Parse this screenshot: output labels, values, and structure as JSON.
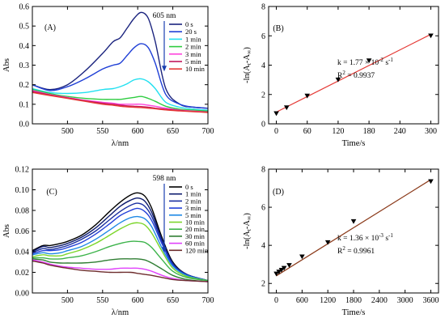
{
  "chart_data": [
    {
      "panel": "(A)",
      "type": "line",
      "xlabel": "λ/nm",
      "ylabel": "Abs",
      "xlim": [
        450,
        700
      ],
      "ylim": [
        0.0,
        0.6
      ],
      "xticks": [
        "500",
        "550",
        "600",
        "650",
        "700"
      ],
      "yticks": [
        "0.0",
        "0.1",
        "0.2",
        "0.3",
        "0.4",
        "0.5",
        "0.6"
      ],
      "annotation": "605 nm",
      "legend_position": "top-right",
      "x": [
        450,
        475,
        500,
        525,
        550,
        565,
        575,
        585,
        595,
        605,
        615,
        625,
        640,
        660,
        680,
        700
      ],
      "series": [
        {
          "name": "0 s",
          "color": "#1a237e",
          "values": [
            0.2,
            0.175,
            0.2,
            0.27,
            0.36,
            0.42,
            0.44,
            0.49,
            0.54,
            0.57,
            0.54,
            0.42,
            0.18,
            0.1,
            0.085,
            0.08
          ]
        },
        {
          "name": "20 s",
          "color": "#1f3fd6",
          "values": [
            0.2,
            0.17,
            0.19,
            0.23,
            0.28,
            0.3,
            0.31,
            0.35,
            0.39,
            0.41,
            0.39,
            0.31,
            0.15,
            0.1,
            0.085,
            0.08
          ]
        },
        {
          "name": "1 min",
          "color": "#22e0f0",
          "values": [
            0.18,
            0.16,
            0.155,
            0.16,
            0.175,
            0.18,
            0.19,
            0.205,
            0.225,
            0.23,
            0.215,
            0.18,
            0.11,
            0.085,
            0.075,
            0.07
          ]
        },
        {
          "name": "2 min",
          "color": "#2ecc40",
          "values": [
            0.175,
            0.155,
            0.14,
            0.13,
            0.125,
            0.125,
            0.125,
            0.13,
            0.135,
            0.14,
            0.13,
            0.115,
            0.09,
            0.075,
            0.07,
            0.065
          ]
        },
        {
          "name": "3 min",
          "color": "#ff44dd",
          "values": [
            0.17,
            0.15,
            0.135,
            0.12,
            0.11,
            0.105,
            0.1,
            0.1,
            0.1,
            0.1,
            0.095,
            0.09,
            0.08,
            0.07,
            0.065,
            0.06
          ]
        },
        {
          "name": "5 min",
          "color": "#c2185b",
          "values": [
            0.165,
            0.148,
            0.132,
            0.118,
            0.105,
            0.1,
            0.095,
            0.092,
            0.09,
            0.088,
            0.085,
            0.08,
            0.074,
            0.068,
            0.063,
            0.06
          ]
        },
        {
          "name": "10 min",
          "color": "#e53935",
          "values": [
            0.16,
            0.145,
            0.13,
            0.115,
            0.1,
            0.095,
            0.09,
            0.087,
            0.085,
            0.083,
            0.08,
            0.077,
            0.071,
            0.066,
            0.062,
            0.058
          ]
        }
      ]
    },
    {
      "panel": "(B)",
      "type": "scatter",
      "xlabel": "Time/s",
      "ylabel": "-ln(At-A∞)",
      "xlim": [
        -15,
        315
      ],
      "ylim": [
        0,
        8
      ],
      "xticks": [
        "0",
        "60",
        "120",
        "180",
        "240",
        "300"
      ],
      "yticks": [
        "0",
        "2",
        "4",
        "6",
        "8"
      ],
      "x": [
        0,
        20,
        60,
        120,
        180,
        300
      ],
      "y": [
        0.7,
        1.1,
        1.9,
        3.0,
        4.3,
        6.0
      ],
      "fit_line": {
        "x": [
          0,
          300
        ],
        "y": [
          0.8,
          6.1
        ],
        "color": "#e53935"
      },
      "fit_text": [
        "k = 1.77 × 10",
        "-2",
        " s",
        "-1",
        "R",
        "2",
        " = 0.9937"
      ]
    },
    {
      "panel": "(C)",
      "type": "line",
      "xlabel": "λ/nm",
      "ylabel": "Abs",
      "xlim": [
        450,
        700
      ],
      "ylim": [
        0.0,
        0.12
      ],
      "xticks": [
        "500",
        "550",
        "600",
        "650",
        "700"
      ],
      "yticks": [
        "0.00",
        "0.02",
        "0.04",
        "0.06",
        "0.08",
        "0.10",
        "0.12"
      ],
      "annotation": "598 nm",
      "legend_position": "top-right",
      "x": [
        450,
        465,
        475,
        490,
        500,
        520,
        540,
        560,
        575,
        590,
        600,
        610,
        620,
        635,
        650,
        670,
        700
      ],
      "series": [
        {
          "name": "0 s",
          "color": "#000000",
          "values": [
            0.041,
            0.046,
            0.046,
            0.048,
            0.05,
            0.056,
            0.066,
            0.079,
            0.088,
            0.095,
            0.097,
            0.094,
            0.082,
            0.053,
            0.03,
            0.018,
            0.012
          ]
        },
        {
          "name": "1 min",
          "color": "#0d1b6e",
          "values": [
            0.04,
            0.045,
            0.044,
            0.046,
            0.048,
            0.054,
            0.063,
            0.075,
            0.084,
            0.09,
            0.092,
            0.089,
            0.078,
            0.051,
            0.029,
            0.018,
            0.012
          ]
        },
        {
          "name": "2 min",
          "color": "#1a2fa0",
          "values": [
            0.039,
            0.043,
            0.042,
            0.044,
            0.046,
            0.052,
            0.06,
            0.071,
            0.079,
            0.085,
            0.087,
            0.084,
            0.074,
            0.049,
            0.028,
            0.018,
            0.012
          ]
        },
        {
          "name": "3 min",
          "color": "#2340d8",
          "values": [
            0.038,
            0.041,
            0.041,
            0.042,
            0.044,
            0.049,
            0.057,
            0.067,
            0.075,
            0.08,
            0.082,
            0.079,
            0.07,
            0.047,
            0.027,
            0.017,
            0.012
          ]
        },
        {
          "name": "5 min",
          "color": "#1e88e5",
          "values": [
            0.037,
            0.039,
            0.038,
            0.039,
            0.041,
            0.045,
            0.052,
            0.061,
            0.068,
            0.073,
            0.074,
            0.072,
            0.064,
            0.043,
            0.026,
            0.017,
            0.012
          ]
        },
        {
          "name": "10 min",
          "color": "#7cd62a",
          "values": [
            0.035,
            0.037,
            0.036,
            0.036,
            0.038,
            0.042,
            0.048,
            0.056,
            0.062,
            0.067,
            0.068,
            0.066,
            0.058,
            0.04,
            0.024,
            0.016,
            0.012
          ]
        },
        {
          "name": "20 min",
          "color": "#3cb34a",
          "values": [
            0.034,
            0.034,
            0.033,
            0.033,
            0.034,
            0.036,
            0.04,
            0.045,
            0.048,
            0.05,
            0.05,
            0.049,
            0.044,
            0.032,
            0.021,
            0.015,
            0.012
          ]
        },
        {
          "name": "30 min",
          "color": "#2e7d32",
          "values": [
            0.033,
            0.032,
            0.03,
            0.029,
            0.029,
            0.029,
            0.03,
            0.032,
            0.033,
            0.033,
            0.033,
            0.032,
            0.029,
            0.023,
            0.017,
            0.013,
            0.011
          ]
        },
        {
          "name": "60 min",
          "color": "#e040fb",
          "values": [
            0.032,
            0.03,
            0.028,
            0.026,
            0.025,
            0.024,
            0.023,
            0.023,
            0.024,
            0.024,
            0.024,
            0.023,
            0.021,
            0.017,
            0.014,
            0.012,
            0.011
          ]
        },
        {
          "name": "120 min",
          "color": "#6d2c2c",
          "values": [
            0.031,
            0.029,
            0.027,
            0.025,
            0.024,
            0.022,
            0.021,
            0.02,
            0.02,
            0.02,
            0.019,
            0.018,
            0.017,
            0.015,
            0.013,
            0.012,
            0.011
          ]
        }
      ]
    },
    {
      "panel": "(D)",
      "type": "scatter",
      "xlabel": "Time/s",
      "ylabel": "-ln(At-A∞)",
      "xlim": [
        -180,
        3780
      ],
      "ylim": [
        1.5,
        8
      ],
      "xticks": [
        "0",
        "600",
        "1200",
        "1800",
        "2400",
        "3000",
        "3600"
      ],
      "yticks": [
        "2",
        "4",
        "6",
        "8"
      ],
      "x": [
        0,
        60,
        120,
        180,
        300,
        600,
        1200,
        1800,
        3600
      ],
      "y": [
        2.5,
        2.6,
        2.7,
        2.8,
        2.95,
        3.4,
        4.15,
        5.25,
        7.35
      ],
      "fit_line": {
        "x": [
          0,
          3600
        ],
        "y": [
          2.4,
          7.45
        ],
        "color": "#8b3a1a"
      },
      "fit_text": [
        "k = 1.36 × 10",
        "-3",
        " s",
        "-1",
        "R",
        "2",
        " = 0.9961"
      ]
    }
  ]
}
